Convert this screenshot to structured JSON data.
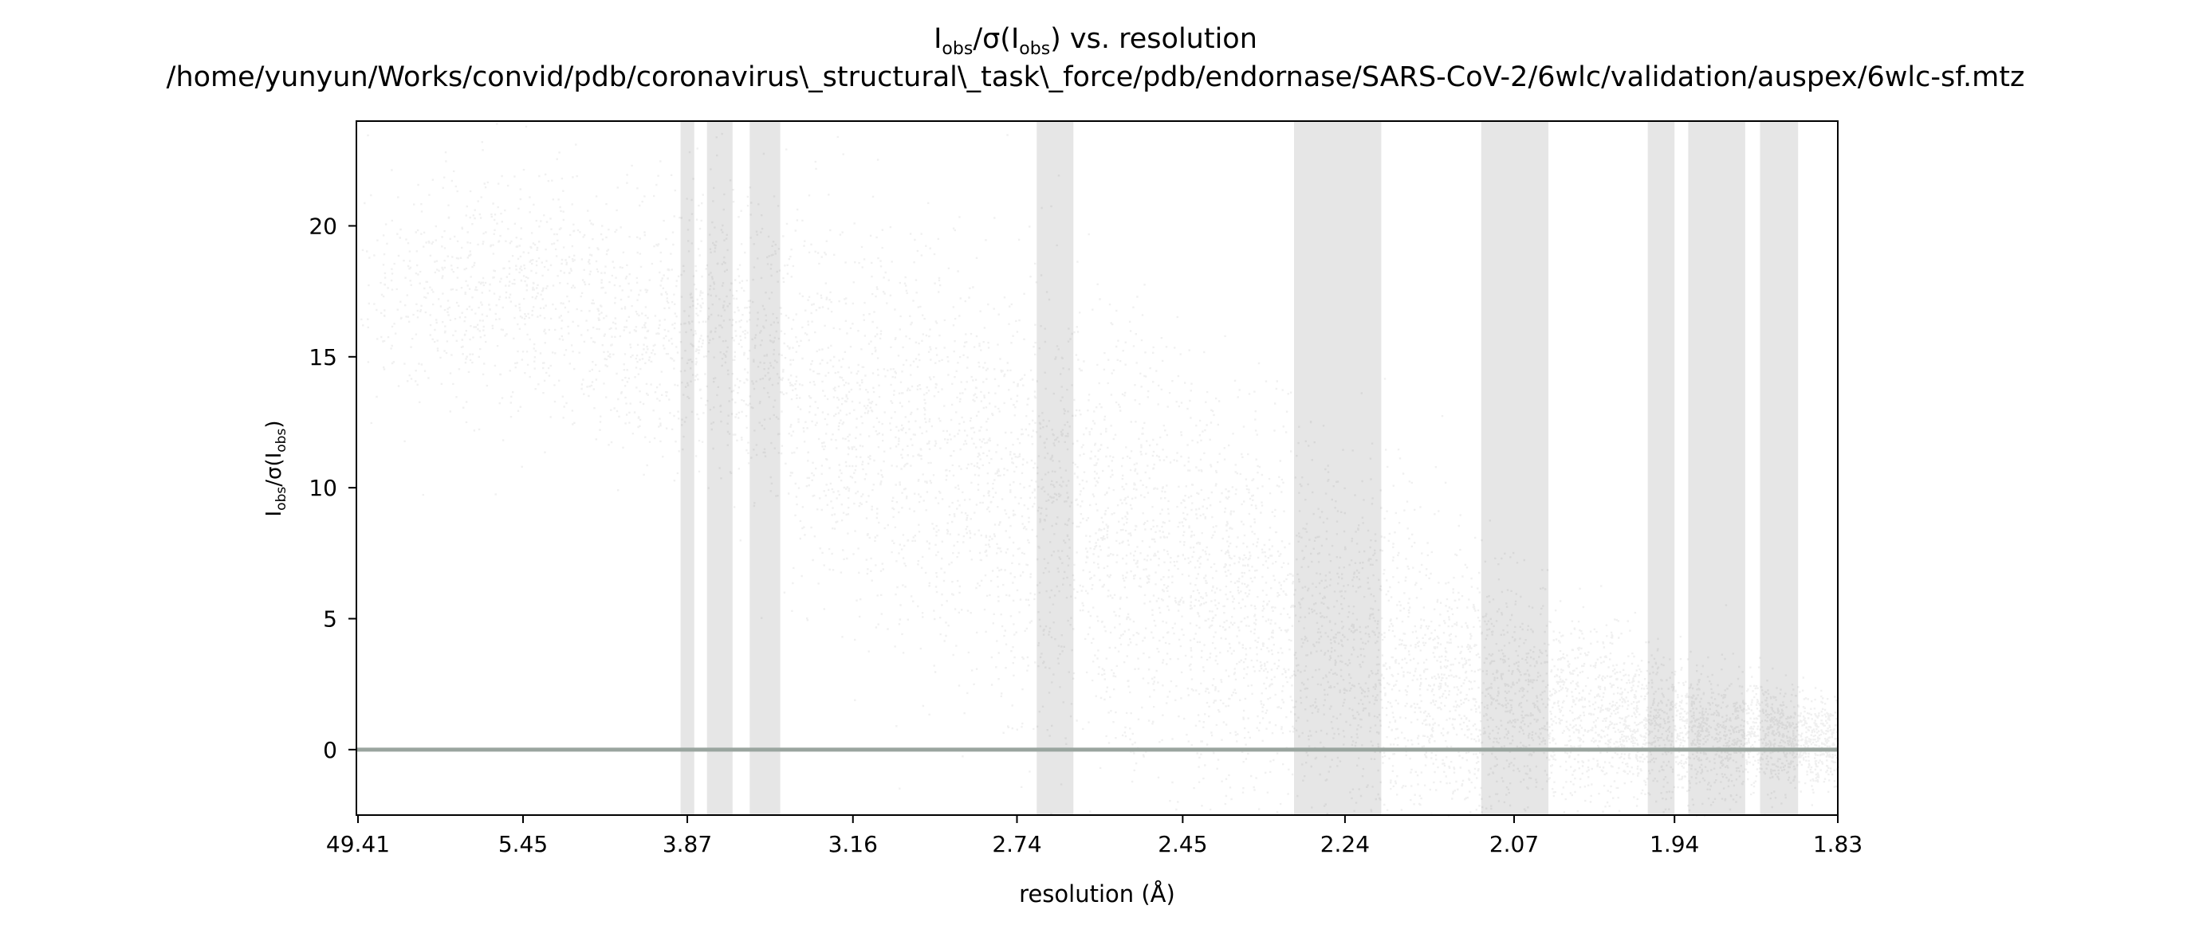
{
  "chart_data": {
    "type": "scatter",
    "title": "I_obs/σ(I_obs) vs. resolution",
    "title_parts": {
      "base1": "I",
      "sub1": "obs",
      "mid": "/σ(I",
      "sub2": "obs",
      "end": ") vs. resolution"
    },
    "subtitle": "/home/yunyun/Works/convid/pdb/coronavirus\\_structural\\_task\\_force/pdb/endornase/SARS-CoV-2/6wlc/validation/auspex/6wlc-sf.mtz",
    "xlabel": "resolution (Å)",
    "ylabel": "I_obs/σ(I_obs)",
    "ylabel_parts": {
      "base1": "I",
      "sub1": "obs",
      "mid": "/σ(I",
      "sub2": "obs",
      "end": ")"
    },
    "x_scale": "inverse-square resolution",
    "x_tick_labels": [
      "49.41",
      "5.45",
      "3.87",
      "3.16",
      "2.74",
      "2.45",
      "2.24",
      "2.07",
      "1.94",
      "1.83"
    ],
    "y_ticks": [
      0,
      5,
      10,
      15,
      20
    ],
    "ylim": [
      -2.5,
      24
    ],
    "grid": false,
    "reference_line": {
      "y": 0,
      "color": "#9aa59f"
    },
    "point_color": "#000000",
    "ice_ring_color": "#e6e6e6",
    "ice_ring_bands_resolution": [
      [
        3.91,
        3.83
      ],
      [
        3.76,
        3.63
      ],
      [
        3.55,
        3.42
      ],
      [
        2.7,
        2.63
      ],
      [
        2.3,
        2.2
      ],
      [
        2.1,
        2.04
      ],
      [
        1.96,
        1.94
      ],
      [
        1.93,
        1.89
      ],
      [
        1.88,
        1.855
      ]
    ],
    "density_trend": [
      {
        "resolution": 10.0,
        "center": 17.5,
        "spread": 2.2
      },
      {
        "resolution": 5.0,
        "center": 17.5,
        "spread": 2.4
      },
      {
        "resolution": 4.2,
        "center": 15.8,
        "spread": 2.6
      },
      {
        "resolution": 3.7,
        "center": 16.5,
        "spread": 3.0
      },
      {
        "resolution": 3.2,
        "center": 13.0,
        "spread": 3.8
      },
      {
        "resolution": 2.74,
        "center": 9.5,
        "spread": 4.2
      },
      {
        "resolution": 2.45,
        "center": 6.5,
        "spread": 4.0
      },
      {
        "resolution": 2.24,
        "center": 3.8,
        "spread": 3.3
      },
      {
        "resolution": 2.07,
        "center": 1.8,
        "spread": 2.2
      },
      {
        "resolution": 1.94,
        "center": 0.8,
        "spread": 1.3
      },
      {
        "resolution": 1.83,
        "center": 0.3,
        "spread": 0.8
      }
    ]
  }
}
